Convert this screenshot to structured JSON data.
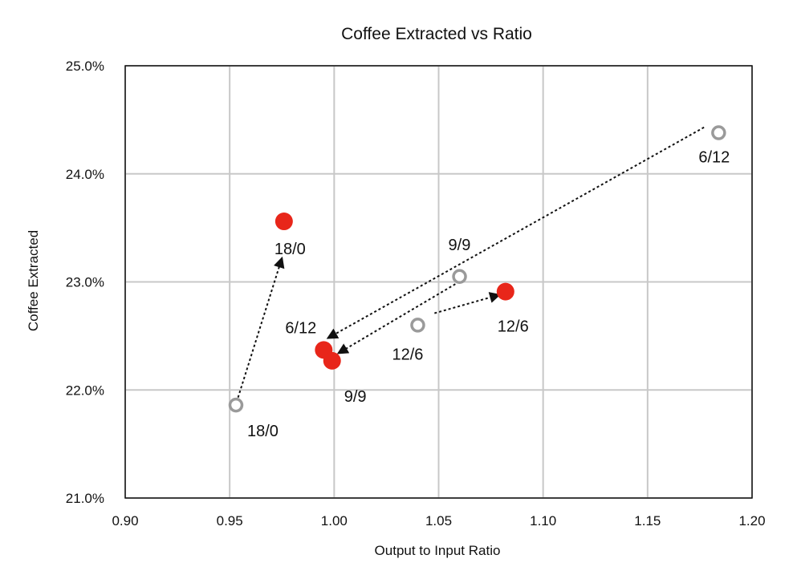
{
  "chart_data": {
    "type": "scatter",
    "title": "Coffee Extracted vs Ratio",
    "xlabel": "Output to Input Ratio",
    "ylabel": "Coffee Extracted",
    "xlim": [
      0.9,
      1.2
    ],
    "ylim": [
      21.0,
      25.0
    ],
    "grid": true,
    "x_ticks": [
      "0.90",
      "0.95",
      "1.00",
      "1.05",
      "1.10",
      "1.15",
      "1.20"
    ],
    "y_ticks": [
      "21.0%",
      "22.0%",
      "23.0%",
      "24.0%",
      "25.0%"
    ],
    "colors": {
      "filled": "#e8261a",
      "hollow": "#9a9a9a",
      "grid": "#c8c8c8",
      "arrow": "#111111"
    },
    "series": [
      {
        "style": "hollow",
        "points": [
          {
            "label": "18/0",
            "x": 0.953,
            "y": 21.86
          },
          {
            "label": "12/6",
            "x": 1.04,
            "y": 22.6
          },
          {
            "label": "9/9",
            "x": 1.06,
            "y": 23.05
          },
          {
            "label": "6/12",
            "x": 1.184,
            "y": 24.38
          }
        ]
      },
      {
        "style": "filled",
        "points": [
          {
            "label": "18/0",
            "x": 0.976,
            "y": 23.56
          },
          {
            "label": "6/12",
            "x": 0.995,
            "y": 22.37
          },
          {
            "label": "9/9",
            "x": 0.999,
            "y": 22.27
          },
          {
            "label": "12/6",
            "x": 1.082,
            "y": 22.91
          }
        ]
      }
    ],
    "arrows": [
      {
        "from": {
          "x": 0.954,
          "y": 21.93
        },
        "to": {
          "x": 0.975,
          "y": 23.22
        }
      },
      {
        "from": {
          "x": 1.048,
          "y": 22.71
        },
        "to": {
          "x": 1.079,
          "y": 22.88
        }
      },
      {
        "from": {
          "x": 1.058,
          "y": 22.98
        },
        "to": {
          "x": 1.002,
          "y": 22.34
        }
      },
      {
        "from": {
          "x": 1.177,
          "y": 24.43
        },
        "to": {
          "x": 0.997,
          "y": 22.48
        }
      }
    ]
  }
}
